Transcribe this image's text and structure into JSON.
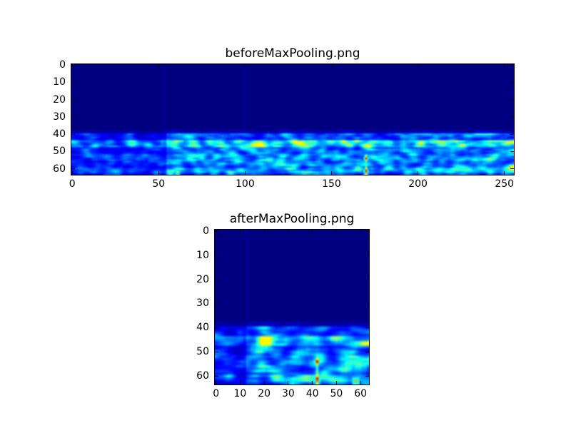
{
  "figure": {
    "background_color": "#ffffff",
    "plot_area_color": "#000080",
    "axes_border_color": "#000000",
    "text_color": "#000000",
    "tick_direction": "in"
  },
  "chart_data": [
    {
      "type": "heatmap",
      "title": "beforeMaxPooling.png",
      "colormap": "jet",
      "cols": 256,
      "rows": 64,
      "x_range": [
        0,
        255
      ],
      "y_range": [
        0,
        63
      ],
      "xticks": [
        0,
        50,
        100,
        150,
        200,
        250
      ],
      "yticks": [
        0,
        10,
        20,
        30,
        40,
        50,
        60
      ],
      "regions": {
        "quiet_rows": [
          0,
          39
        ],
        "active_band_rows": [
          40,
          63
        ],
        "bright_streak_rows": [
          44,
          47
        ],
        "weak_cols": [
          0,
          54
        ],
        "strong_cols": [
          55,
          255
        ],
        "vertical_faint_streak_cols": [
          53,
          100
        ],
        "hotspot": {
          "col": 170,
          "peak_rows": [
            54,
            61
          ],
          "streak_rows": [
            52,
            63
          ]
        },
        "secondary_dots": [
          {
            "col": 61,
            "row": 62,
            "intensity": 0.62
          }
        ]
      }
    },
    {
      "type": "heatmap",
      "title": "afterMaxPooling.png",
      "colormap": "jet",
      "cols": 64,
      "rows": 64,
      "x_range": [
        0,
        63
      ],
      "y_range": [
        0,
        63
      ],
      "xticks": [
        0,
        10,
        20,
        30,
        40,
        50,
        60
      ],
      "yticks": [
        0,
        10,
        20,
        30,
        40,
        50,
        60
      ],
      "regions": {
        "quiet_rows": [
          0,
          39
        ],
        "active_band_rows": [
          40,
          63
        ],
        "bright_streak_rows": [
          44,
          47
        ],
        "weak_cols": [
          0,
          12
        ],
        "strong_cols": [
          13,
          63
        ],
        "vertical_faint_streak_cols": [
          13
        ],
        "hotspot": {
          "col": 42,
          "peak_rows": [
            54,
            61
          ],
          "streak_rows": [
            52,
            63
          ]
        },
        "secondary_dots": [
          {
            "col": 58,
            "row": 62,
            "intensity": 0.72
          }
        ]
      }
    }
  ]
}
